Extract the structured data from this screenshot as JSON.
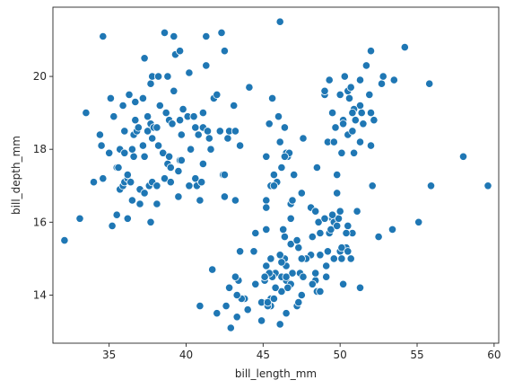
{
  "chart_data": {
    "type": "scatter",
    "xlabel": "bill_length_mm",
    "ylabel": "bill_depth_mm",
    "xlim": [
      31.35,
      60.3
    ],
    "ylim": [
      12.68,
      21.9
    ],
    "xticks": [
      35,
      40,
      45,
      50,
      55,
      60
    ],
    "yticks": [
      14,
      16,
      18,
      20
    ],
    "grid": false,
    "marker_color": "#1f77b4",
    "marker_edge": "#ffffff",
    "points": [
      [
        32.1,
        15.5
      ],
      [
        33.1,
        16.1
      ],
      [
        33.5,
        19.0
      ],
      [
        34.0,
        17.1
      ],
      [
        34.4,
        18.4
      ],
      [
        34.5,
        18.1
      ],
      [
        34.6,
        21.1
      ],
      [
        34.6,
        17.2
      ],
      [
        35.0,
        17.9
      ],
      [
        35.1,
        19.4
      ],
      [
        35.2,
        15.9
      ],
      [
        35.3,
        18.9
      ],
      [
        35.5,
        17.5
      ],
      [
        35.5,
        16.2
      ],
      [
        35.6,
        17.5
      ],
      [
        35.7,
        16.9
      ],
      [
        35.7,
        18.0
      ],
      [
        35.9,
        19.2
      ],
      [
        35.9,
        17.0
      ],
      [
        36.0,
        18.5
      ],
      [
        36.0,
        17.9
      ],
      [
        36.0,
        17.1
      ],
      [
        36.2,
        16.1
      ],
      [
        36.2,
        17.2
      ],
      [
        36.2,
        17.3
      ],
      [
        36.3,
        19.5
      ],
      [
        36.4,
        17.1
      ],
      [
        36.5,
        16.6
      ],
      [
        36.5,
        18.0
      ],
      [
        36.6,
        17.8
      ],
      [
        36.6,
        18.4
      ],
      [
        36.7,
        19.3
      ],
      [
        36.7,
        18.8
      ],
      [
        36.8,
        18.5
      ],
      [
        36.9,
        18.6
      ],
      [
        37.0,
        16.5
      ],
      [
        37.0,
        16.9
      ],
      [
        37.2,
        18.1
      ],
      [
        37.2,
        19.4
      ],
      [
        37.3,
        17.8
      ],
      [
        37.3,
        16.8
      ],
      [
        37.3,
        20.5
      ],
      [
        37.5,
        18.9
      ],
      [
        37.5,
        18.5
      ],
      [
        37.6,
        17.0
      ],
      [
        37.7,
        18.7
      ],
      [
        37.7,
        16.0
      ],
      [
        37.7,
        19.8
      ],
      [
        37.8,
        17.1
      ],
      [
        37.8,
        18.3
      ],
      [
        37.8,
        20.0
      ],
      [
        37.9,
        18.6
      ],
      [
        38.1,
        18.6
      ],
      [
        38.1,
        17.0
      ],
      [
        38.1,
        16.5
      ],
      [
        38.2,
        18.1
      ],
      [
        38.2,
        20.0
      ],
      [
        38.3,
        19.2
      ],
      [
        38.5,
        17.9
      ],
      [
        38.6,
        21.2
      ],
      [
        38.6,
        17.2
      ],
      [
        38.7,
        19.0
      ],
      [
        38.8,
        17.6
      ],
      [
        38.8,
        20.0
      ],
      [
        38.9,
        17.8
      ],
      [
        38.9,
        18.8
      ],
      [
        39.0,
        17.1
      ],
      [
        39.0,
        17.5
      ],
      [
        39.1,
        18.7
      ],
      [
        39.2,
        19.6
      ],
      [
        39.2,
        21.1
      ],
      [
        39.3,
        20.6
      ],
      [
        39.5,
        17.4
      ],
      [
        39.5,
        16.7
      ],
      [
        39.6,
        18.8
      ],
      [
        39.6,
        17.7
      ],
      [
        39.6,
        20.7
      ],
      [
        39.7,
        18.4
      ],
      [
        39.7,
        17.7
      ],
      [
        39.8,
        19.1
      ],
      [
        40.1,
        18.9
      ],
      [
        40.2,
        17.0
      ],
      [
        40.2,
        20.1
      ],
      [
        40.3,
        18.0
      ],
      [
        40.5,
        18.9
      ],
      [
        40.6,
        18.6
      ],
      [
        40.6,
        17.2
      ],
      [
        40.7,
        17.0
      ],
      [
        40.8,
        18.4
      ],
      [
        40.9,
        16.6
      ],
      [
        41.0,
        17.1
      ],
      [
        41.1,
        18.6
      ],
      [
        41.1,
        17.6
      ],
      [
        41.1,
        19.0
      ],
      [
        41.3,
        21.1
      ],
      [
        41.3,
        20.3
      ],
      [
        41.4,
        18.5
      ],
      [
        41.5,
        18.3
      ],
      [
        41.6,
        18.0
      ],
      [
        41.7,
        14.7
      ],
      [
        41.8,
        19.4
      ],
      [
        42.0,
        19.5
      ],
      [
        42.2,
        18.5
      ],
      [
        42.3,
        21.2
      ],
      [
        42.4,
        17.3
      ],
      [
        42.5,
        20.7
      ],
      [
        42.7,
        18.3
      ],
      [
        42.8,
        18.5
      ],
      [
        42.9,
        13.1
      ],
      [
        43.1,
        19.2
      ],
      [
        43.2,
        18.5
      ],
      [
        43.2,
        16.6
      ],
      [
        43.3,
        13.4
      ],
      [
        43.5,
        15.2
      ],
      [
        43.8,
        13.9
      ],
      [
        44.0,
        13.6
      ],
      [
        44.1,
        19.7
      ],
      [
        44.5,
        14.3
      ],
      [
        44.9,
        13.3
      ],
      [
        45.1,
        14.5
      ],
      [
        45.2,
        13.8
      ],
      [
        45.4,
        14.6
      ],
      [
        45.5,
        13.7
      ],
      [
        45.5,
        15.0
      ],
      [
        45.7,
        13.9
      ],
      [
        45.8,
        14.6
      ],
      [
        46.1,
        13.2
      ],
      [
        46.2,
        14.5
      ],
      [
        46.4,
        15.0
      ],
      [
        46.5,
        13.5
      ],
      [
        46.8,
        14.3
      ],
      [
        46.9,
        14.6
      ],
      [
        47.2,
        13.7
      ],
      [
        47.3,
        15.3
      ],
      [
        47.5,
        14.0
      ],
      [
        47.8,
        15.0
      ],
      [
        48.1,
        15.1
      ],
      [
        48.2,
        14.3
      ],
      [
        48.4,
        14.4
      ],
      [
        48.5,
        14.1
      ],
      [
        48.7,
        14.1
      ],
      [
        49.1,
        14.8
      ],
      [
        49.2,
        15.2
      ],
      [
        49.5,
        16.1
      ],
      [
        49.8,
        16.8
      ],
      [
        50.0,
        15.2
      ],
      [
        50.1,
        15.0
      ],
      [
        50.4,
        15.3
      ],
      [
        50.5,
        15.9
      ],
      [
        50.7,
        15.0
      ],
      [
        51.1,
        16.3
      ],
      [
        51.3,
        14.2
      ],
      [
        52.1,
        17.0
      ],
      [
        52.5,
        15.6
      ],
      [
        53.4,
        15.8
      ],
      [
        55.1,
        16.0
      ],
      [
        55.9,
        17.0
      ],
      [
        59.6,
        17.0
      ],
      [
        49.0,
        19.5
      ],
      [
        50.0,
        19.5
      ],
      [
        46.5,
        17.9
      ],
      [
        50.0,
        19.5
      ],
      [
        51.3,
        19.2
      ],
      [
        45.4,
        18.7
      ],
      [
        52.7,
        19.8
      ],
      [
        45.2,
        17.8
      ],
      [
        46.1,
        18.2
      ],
      [
        51.3,
        18.2
      ],
      [
        46.0,
        18.9
      ],
      [
        51.3,
        19.9
      ],
      [
        46.6,
        17.8
      ],
      [
        51.7,
        20.3
      ],
      [
        47.0,
        17.3
      ],
      [
        52.0,
        18.1
      ],
      [
        45.9,
        17.1
      ],
      [
        50.5,
        19.6
      ],
      [
        50.3,
        20.0
      ],
      [
        58.0,
        17.8
      ],
      [
        46.4,
        18.6
      ],
      [
        49.2,
        18.2
      ],
      [
        42.4,
        17.3
      ],
      [
        48.5,
        17.5
      ],
      [
        43.2,
        16.6
      ],
      [
        50.6,
        19.4
      ],
      [
        46.7,
        17.9
      ],
      [
        52.0,
        19.0
      ],
      [
        50.5,
        18.4
      ],
      [
        49.5,
        19.0
      ],
      [
        46.4,
        17.8
      ],
      [
        52.8,
        20.0
      ],
      [
        40.9,
        16.6
      ],
      [
        54.2,
        20.8
      ],
      [
        42.5,
        16.7
      ],
      [
        51.0,
        18.8
      ],
      [
        49.7,
        18.6
      ],
      [
        47.5,
        16.8
      ],
      [
        47.6,
        18.3
      ],
      [
        52.0,
        20.7
      ],
      [
        46.9,
        16.6
      ],
      [
        53.5,
        19.9
      ],
      [
        49.0,
        19.6
      ],
      [
        46.2,
        17.5
      ],
      [
        50.9,
        19.1
      ],
      [
        45.5,
        17.0
      ],
      [
        50.9,
        17.9
      ],
      [
        50.8,
        18.5
      ],
      [
        50.1,
        17.9
      ],
      [
        49.0,
        19.6
      ],
      [
        51.5,
        18.7
      ],
      [
        49.8,
        17.3
      ],
      [
        48.1,
        16.4
      ],
      [
        51.4,
        19.0
      ],
      [
        45.7,
        17.3
      ],
      [
        50.7,
        19.7
      ],
      [
        42.5,
        17.3
      ],
      [
        52.2,
        18.8
      ],
      [
        45.2,
        16.6
      ],
      [
        49.3,
        19.9
      ],
      [
        50.2,
        18.8
      ],
      [
        45.6,
        19.4
      ],
      [
        51.9,
        19.5
      ],
      [
        46.8,
        16.5
      ],
      [
        45.7,
        17.0
      ],
      [
        55.8,
        19.8
      ],
      [
        43.5,
        18.1
      ],
      [
        49.6,
        18.2
      ],
      [
        50.8,
        19.0
      ],
      [
        50.2,
        18.7
      ],
      [
        46.1,
        21.5
      ],
      [
        47.4,
        14.6
      ],
      [
        48.6,
        16.0
      ],
      [
        49.6,
        16.0
      ],
      [
        45.3,
        13.7
      ],
      [
        49.6,
        15.0
      ],
      [
        50.5,
        15.9
      ],
      [
        43.6,
        13.9
      ],
      [
        45.5,
        13.9
      ],
      [
        50.1,
        15.3
      ],
      [
        48.4,
        16.3
      ],
      [
        46.3,
        15.8
      ],
      [
        45.6,
        14.5
      ],
      [
        49.9,
        16.1
      ],
      [
        46.5,
        14.8
      ],
      [
        50.2,
        14.3
      ],
      [
        46.2,
        14.1
      ],
      [
        49.5,
        16.2
      ],
      [
        44.9,
        13.8
      ],
      [
        45.3,
        13.8
      ],
      [
        43.3,
        14.0
      ],
      [
        46.4,
        15.6
      ],
      [
        47.7,
        15.0
      ],
      [
        45.8,
        14.2
      ],
      [
        46.2,
        14.9
      ],
      [
        47.3,
        13.8
      ],
      [
        45.1,
        14.4
      ],
      [
        46.5,
        14.4
      ],
      [
        48.2,
        15.6
      ],
      [
        47.2,
        15.5
      ],
      [
        48.7,
        15.7
      ],
      [
        46.1,
        15.1
      ],
      [
        49.3,
        15.7
      ],
      [
        45.5,
        15.0
      ],
      [
        48.4,
        14.6
      ],
      [
        47.6,
        14.5
      ],
      [
        46.2,
        14.5
      ],
      [
        50.0,
        16.3
      ],
      [
        43.4,
        14.4
      ],
      [
        48.6,
        16.0
      ],
      [
        45.2,
        15.8
      ],
      [
        46.9,
        14.6
      ],
      [
        47.8,
        15.0
      ],
      [
        49.1,
        14.5
      ],
      [
        49.0,
        16.1
      ],
      [
        43.2,
        14.5
      ],
      [
        48.1,
        16.4
      ],
      [
        45.7,
        13.9
      ],
      [
        44.4,
        15.2
      ],
      [
        44.9,
        13.3
      ],
      [
        48.4,
        16.3
      ],
      [
        42.6,
        13.7
      ],
      [
        46.8,
        14.3
      ],
      [
        49.6,
        15.0
      ],
      [
        46.5,
        14.5
      ],
      [
        45.4,
        14.6
      ],
      [
        50.8,
        15.7
      ],
      [
        45.2,
        16.4
      ],
      [
        46.8,
        16.1
      ],
      [
        48.7,
        15.1
      ],
      [
        45.1,
        14.5
      ],
      [
        46.8,
        15.4
      ],
      [
        47.5,
        15.0
      ],
      [
        49.4,
        15.8
      ],
      [
        42.8,
        14.2
      ],
      [
        46.9,
        16.6
      ],
      [
        48.7,
        14.1
      ],
      [
        47.2,
        15.5
      ],
      [
        45.1,
        14.5
      ],
      [
        46.5,
        13.5
      ],
      [
        50.4,
        15.7
      ],
      [
        45.8,
        14.2
      ],
      [
        41.7,
        14.7
      ],
      [
        42.0,
        13.5
      ],
      [
        50.5,
        15.2
      ],
      [
        40.9,
        13.7
      ],
      [
        49.8,
        15.9
      ],
      [
        44.5,
        15.7
      ],
      [
        46.6,
        14.2
      ],
      [
        46.3,
        15.8
      ],
      [
        48.2,
        14.3
      ],
      [
        45.2,
        14.8
      ]
    ]
  }
}
